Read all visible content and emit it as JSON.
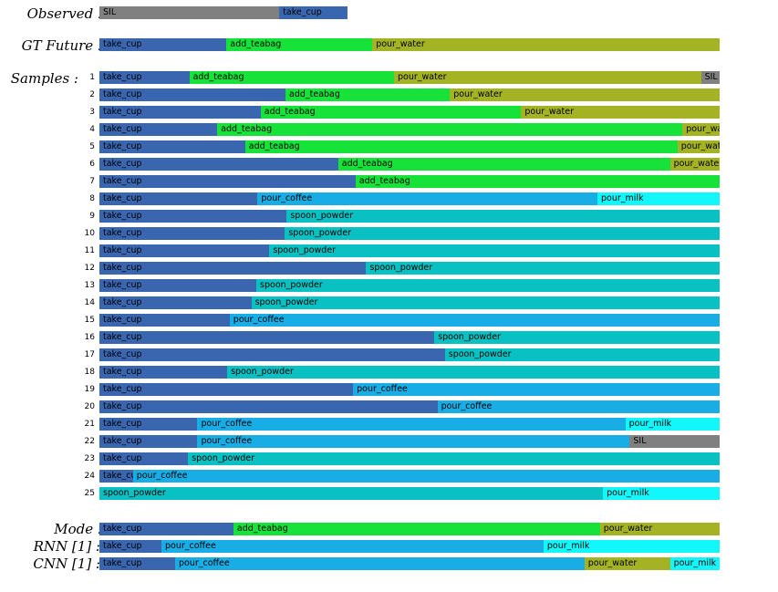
{
  "colors": {
    "SIL": "#808080",
    "take_cup": "#3a66b0",
    "add_teabag": "#16e23a",
    "pour_water": "#a3b324",
    "pour_coffee": "#19ade6",
    "pour_milk": "#12f7fb",
    "spoon_powder": "#09c1c3"
  },
  "labels": {
    "observed": "Observed :",
    "gt_future": "GT Future :",
    "samples": "Samples :",
    "mode": "Mode :",
    "rnn": "RNN [1] :",
    "cnn": "CNN [1] :"
  },
  "rows": {
    "observed": [
      [
        "SIL",
        0.29
      ],
      [
        "take_cup",
        0.11
      ]
    ],
    "gt_future": [
      [
        "take_cup",
        0.205
      ],
      [
        "add_teabag",
        0.235
      ],
      [
        "pour_water",
        0.56
      ]
    ],
    "samples": [
      {
        "num": "1",
        "segments": [
          [
            "take_cup",
            0.145
          ],
          [
            "add_teabag",
            0.33
          ],
          [
            "pour_water",
            0.495
          ],
          [
            "SIL",
            0.03
          ]
        ]
      },
      {
        "num": "2",
        "segments": [
          [
            "take_cup",
            0.3
          ],
          [
            "add_teabag",
            0.265
          ],
          [
            "pour_water",
            0.435
          ]
        ]
      },
      {
        "num": "3",
        "segments": [
          [
            "take_cup",
            0.26
          ],
          [
            "add_teabag",
            0.42
          ],
          [
            "pour_water",
            0.32
          ]
        ]
      },
      {
        "num": "4",
        "segments": [
          [
            "take_cup",
            0.19
          ],
          [
            "add_teabag",
            0.75
          ],
          [
            "pour_water",
            0.06
          ]
        ]
      },
      {
        "num": "5",
        "segments": [
          [
            "take_cup",
            0.235
          ],
          [
            "add_teabag",
            0.697
          ],
          [
            "pour_water",
            0.068
          ]
        ]
      },
      {
        "num": "6",
        "segments": [
          [
            "take_cup",
            0.385
          ],
          [
            "add_teabag",
            0.535
          ],
          [
            "pour_water",
            0.08
          ]
        ]
      },
      {
        "num": "7",
        "segments": [
          [
            "take_cup",
            0.413
          ],
          [
            "add_teabag",
            0.587
          ]
        ]
      },
      {
        "num": "8",
        "segments": [
          [
            "take_cup",
            0.255
          ],
          [
            "pour_coffee",
            0.548
          ],
          [
            "pour_milk",
            0.197
          ]
        ]
      },
      {
        "num": "9",
        "segments": [
          [
            "take_cup",
            0.302
          ],
          [
            "spoon_powder",
            0.698
          ]
        ]
      },
      {
        "num": "10",
        "segments": [
          [
            "take_cup",
            0.299
          ],
          [
            "spoon_powder",
            0.701
          ]
        ]
      },
      {
        "num": "11",
        "segments": [
          [
            "take_cup",
            0.274
          ],
          [
            "spoon_powder",
            0.726
          ]
        ]
      },
      {
        "num": "12",
        "segments": [
          [
            "take_cup",
            0.43
          ],
          [
            "spoon_powder",
            0.57
          ]
        ]
      },
      {
        "num": "13",
        "segments": [
          [
            "take_cup",
            0.253
          ],
          [
            "spoon_powder",
            0.747
          ]
        ]
      },
      {
        "num": "14",
        "segments": [
          [
            "take_cup",
            0.245
          ],
          [
            "spoon_powder",
            0.755
          ]
        ]
      },
      {
        "num": "15",
        "segments": [
          [
            "take_cup",
            0.21
          ],
          [
            "pour_coffee",
            0.79
          ]
        ]
      },
      {
        "num": "16",
        "segments": [
          [
            "take_cup",
            0.54
          ],
          [
            "spoon_powder",
            0.46
          ]
        ]
      },
      {
        "num": "17",
        "segments": [
          [
            "take_cup",
            0.557
          ],
          [
            "spoon_powder",
            0.443
          ]
        ]
      },
      {
        "num": "18",
        "segments": [
          [
            "take_cup",
            0.206
          ],
          [
            "spoon_powder",
            0.794
          ]
        ]
      },
      {
        "num": "19",
        "segments": [
          [
            "take_cup",
            0.409
          ],
          [
            "pour_coffee",
            0.591
          ]
        ]
      },
      {
        "num": "20",
        "segments": [
          [
            "take_cup",
            0.545
          ],
          [
            "pour_coffee",
            0.455
          ]
        ]
      },
      {
        "num": "21",
        "segments": [
          [
            "take_cup",
            0.158
          ],
          [
            "pour_coffee",
            0.69
          ],
          [
            "pour_milk",
            0.152
          ]
        ]
      },
      {
        "num": "22",
        "segments": [
          [
            "take_cup",
            0.158
          ],
          [
            "pour_coffee",
            0.697
          ],
          [
            "SIL",
            0.145
          ]
        ]
      },
      {
        "num": "23",
        "segments": [
          [
            "take_cup",
            0.143
          ],
          [
            "spoon_powder",
            0.857
          ]
        ]
      },
      {
        "num": "24",
        "segments": [
          [
            "take_cup",
            0.054
          ],
          [
            "pour_coffee",
            0.946
          ]
        ]
      },
      {
        "num": "25",
        "segments": [
          [
            "spoon_powder",
            0.812
          ],
          [
            "pour_milk",
            0.188
          ]
        ]
      }
    ],
    "mode": [
      [
        "take_cup",
        0.216
      ],
      [
        "add_teabag",
        0.591
      ],
      [
        "pour_water",
        0.193
      ]
    ],
    "rnn": [
      [
        "take_cup",
        0.1
      ],
      [
        "pour_coffee",
        0.616
      ],
      [
        "pour_milk",
        0.284
      ]
    ],
    "cnn": [
      [
        "take_cup",
        0.122
      ],
      [
        "pour_coffee",
        0.66
      ],
      [
        "pour_water",
        0.138
      ],
      [
        "pour_milk",
        0.08
      ]
    ]
  }
}
